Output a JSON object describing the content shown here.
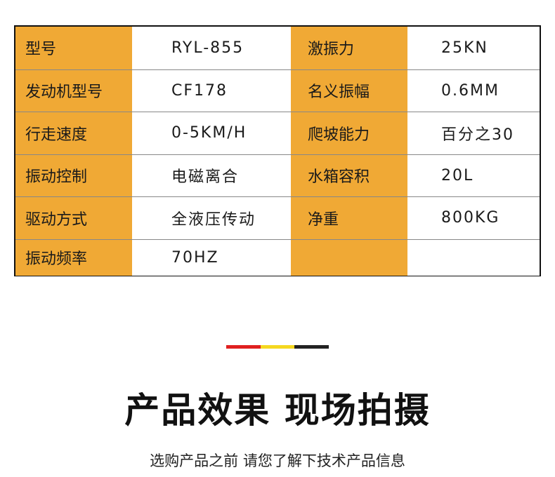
{
  "specs": [
    {
      "label1": "型号",
      "value1": "RYL-855",
      "label2": "激振力",
      "value2": "25KN"
    },
    {
      "label1": "发动机型号",
      "value1": "CF178",
      "label2": "名义振幅",
      "value2": "0.6MM"
    },
    {
      "label1": "行走速度",
      "value1": "0-5KM/H",
      "label2": "爬坡能力",
      "value2": "百分之30"
    },
    {
      "label1": "振动控制",
      "value1": "电磁离合",
      "label2": "水箱容积",
      "value2": "20L"
    },
    {
      "label1": "驱动方式",
      "value1": "全液压传动",
      "label2": "净重",
      "value2": "800KG"
    },
    {
      "label1": "振动频率",
      "value1": "70HZ",
      "label2": "",
      "value2": ""
    }
  ],
  "colors": {
    "label_bg": "#F0A935",
    "bar": [
      "#E02020",
      "#F5D820",
      "#222222"
    ]
  },
  "section": {
    "title": "产品效果 现场拍摄",
    "subtitle": "选购产品之前 请您了解下技术产品信息"
  }
}
